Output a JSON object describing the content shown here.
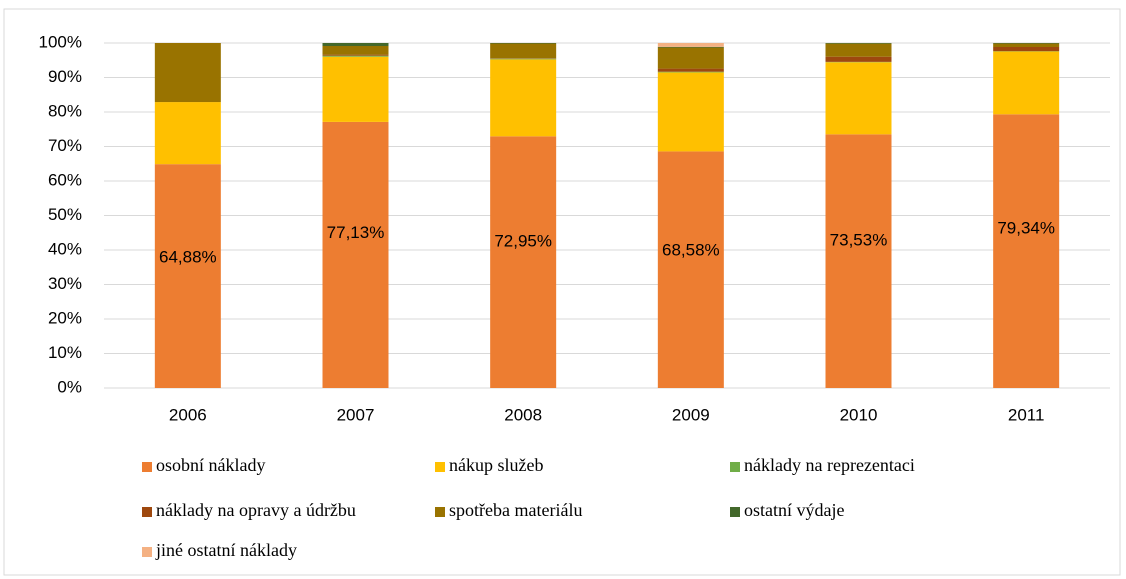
{
  "chart_data": {
    "type": "stacked_bar",
    "categories": [
      "2006",
      "2007",
      "2008",
      "2009",
      "2010",
      "2011"
    ],
    "series": [
      {
        "name": "osobní náklady",
        "color": "#ED7D31",
        "values": [
          64.88,
          77.13,
          72.95,
          68.58,
          73.53,
          79.34
        ],
        "value_labels": [
          "64,88%",
          "77,13%",
          "72,95%",
          "68,58%",
          "73,53%",
          "79,34%"
        ]
      },
      {
        "name": "nákup služeb",
        "color": "#FFC000",
        "values": [
          18.0,
          18.9,
          22.3,
          22.9,
          20.9,
          18.2
        ]
      },
      {
        "name": "náklady na reprezentaci",
        "color": "#70AD47",
        "values": [
          0,
          0.3,
          0.2,
          0.2,
          0.1,
          0.1
        ]
      },
      {
        "name": "náklady na opravy a údržbu",
        "color": "#9E480E",
        "values": [
          0,
          0.3,
          0.1,
          0.9,
          1.5,
          1.2
        ]
      },
      {
        "name": "spotřeba materiálu",
        "color": "#997300",
        "values": [
          17.12,
          2.5,
          4.3,
          6.1,
          3.8,
          1.0
        ]
      },
      {
        "name": "ostatní výdaje",
        "color": "#43682B",
        "values": [
          0,
          0.87,
          0.15,
          0.2,
          0.17,
          0.16
        ]
      },
      {
        "name": "jiné ostatní náklady",
        "color": "#F4B183",
        "values": [
          0,
          0,
          0,
          1.12,
          0,
          0
        ]
      }
    ],
    "ylim": [
      0,
      100
    ],
    "yticks": [
      {
        "value": 0,
        "label": "0%"
      },
      {
        "value": 10,
        "label": "10%"
      },
      {
        "value": 20,
        "label": "20%"
      },
      {
        "value": 30,
        "label": "30%"
      },
      {
        "value": 40,
        "label": "40%"
      },
      {
        "value": 50,
        "label": "50%"
      },
      {
        "value": 60,
        "label": "60%"
      },
      {
        "value": 70,
        "label": "70%"
      },
      {
        "value": 80,
        "label": "80%"
      },
      {
        "value": 90,
        "label": "90%"
      },
      {
        "value": 100,
        "label": "100%"
      }
    ],
    "grid": true,
    "legend": "bottom"
  }
}
